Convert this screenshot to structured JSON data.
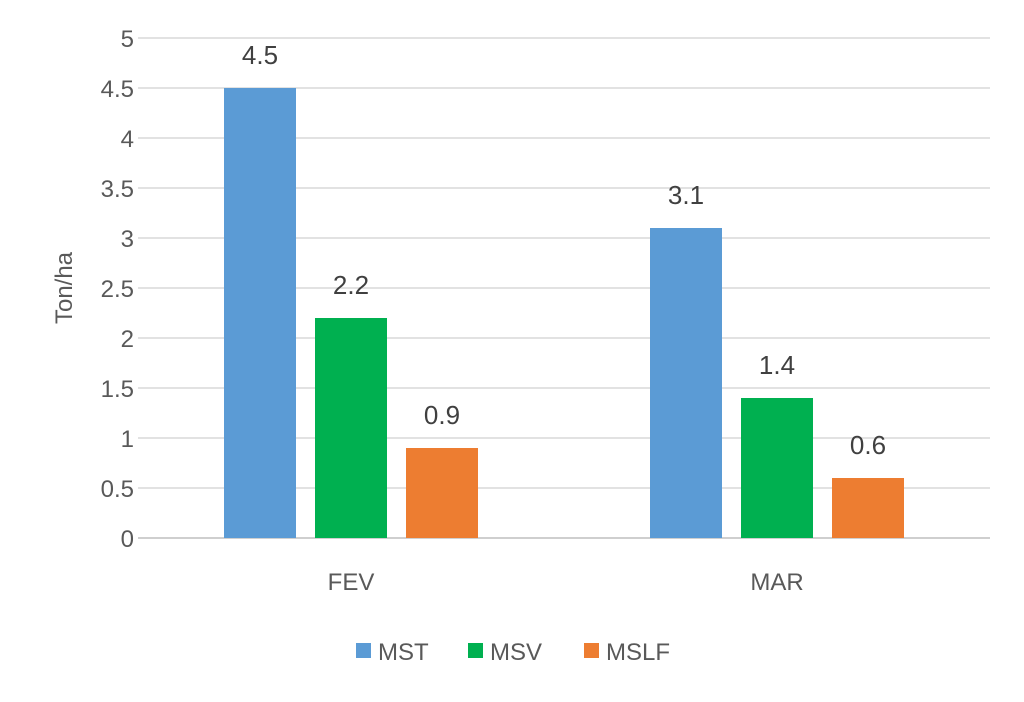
{
  "chart_data": {
    "type": "bar",
    "title": "",
    "xlabel": "",
    "ylabel": "Ton/ha",
    "ylim": [
      0,
      5
    ],
    "yticks": [
      0,
      0.5,
      1,
      1.5,
      2,
      2.5,
      3,
      3.5,
      4,
      4.5,
      5
    ],
    "ytick_labels": [
      "0",
      "0.5",
      "1",
      "1.5",
      "2",
      "2.5",
      "3",
      "3.5",
      "4",
      "4.5",
      "5"
    ],
    "grid": true,
    "legend_position": "bottom",
    "categories": [
      "FEV",
      "MAR"
    ],
    "series": [
      {
        "name": "MST",
        "color": "#5b9bd5",
        "values": [
          4.5,
          3.1
        ]
      },
      {
        "name": "MSV",
        "color": "#00b050",
        "values": [
          2.2,
          1.4
        ]
      },
      {
        "name": "MSLF",
        "color": "#ed7d31",
        "values": [
          0.9,
          0.6
        ]
      }
    ]
  }
}
